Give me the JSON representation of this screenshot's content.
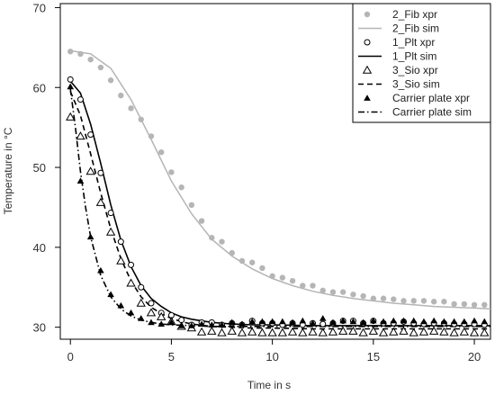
{
  "chart_data": {
    "type": "scatter",
    "title": "",
    "xlabel": "Time in s",
    "ylabel": "Temperature in °C",
    "xlim": [
      -0.5,
      20.8
    ],
    "ylim": [
      28.5,
      70.5
    ],
    "xticks": [
      0,
      5,
      10,
      15,
      20
    ],
    "yticks": [
      30,
      40,
      50,
      60,
      70
    ],
    "grid": false,
    "legend_position": "top-right",
    "colors": {
      "fib": "#b5b5b5",
      "dark": "#000000"
    },
    "legend": [
      {
        "label": "2_Fib xpr",
        "marker": "dot",
        "line": null,
        "color": "#b5b5b5"
      },
      {
        "label": "2_Fib sim",
        "marker": null,
        "line": "solid",
        "color": "#b5b5b5"
      },
      {
        "label": "1_Plt xpr",
        "marker": "open-circle",
        "line": null,
        "color": "#000000"
      },
      {
        "label": "1_Plt sim",
        "marker": null,
        "line": "solid",
        "color": "#000000"
      },
      {
        "label": "3_Sio xpr",
        "marker": "open-triangle",
        "line": null,
        "color": "#000000"
      },
      {
        "label": "3_Sio sim",
        "marker": null,
        "line": "dashed",
        "color": "#000000"
      },
      {
        "label": "Carrier plate xpr",
        "marker": "filled-triangle",
        "line": null,
        "color": "#000000"
      },
      {
        "label": "Carrier plate sim",
        "marker": null,
        "line": "dashdot",
        "color": "#000000"
      }
    ],
    "series": [
      {
        "name": "2_Fib xpr",
        "kind": "points",
        "marker": "dot",
        "color": "#b5b5b5",
        "x": [
          0,
          0.5,
          1.0,
          1.5,
          2.0,
          2.5,
          3.0,
          3.5,
          4.0,
          4.5,
          5.0,
          5.5,
          6.0,
          6.5,
          7.0,
          7.5,
          8.0,
          8.5,
          9.0,
          9.5,
          10.0,
          10.5,
          11.0,
          11.5,
          12.0,
          12.5,
          13.0,
          13.5,
          14.0,
          14.5,
          15.0,
          15.5,
          16.0,
          16.5,
          17.0,
          17.5,
          18.0,
          18.5,
          19.0,
          19.5,
          20.0,
          20.5
        ],
        "y": [
          64.5,
          64.2,
          63.5,
          62.5,
          60.9,
          59.0,
          57.4,
          56.0,
          53.9,
          51.9,
          49.4,
          47.5,
          45.3,
          43.3,
          41.2,
          40.7,
          39.3,
          38.3,
          38.1,
          37.4,
          36.4,
          36.2,
          35.8,
          35.2,
          35.2,
          34.6,
          34.4,
          34.4,
          34.1,
          33.9,
          33.6,
          33.6,
          33.5,
          33.3,
          33.3,
          33.3,
          33.2,
          33.2,
          32.9,
          32.9,
          32.8,
          32.8
        ]
      },
      {
        "name": "2_Fib sim",
        "kind": "line",
        "dash": "solid",
        "color": "#b5b5b5",
        "x": [
          0,
          1,
          2,
          3,
          4,
          5,
          6,
          7,
          8,
          9,
          10,
          11,
          12,
          13,
          14,
          15,
          16,
          17,
          18,
          19,
          20,
          20.8
        ],
        "y": [
          64.6,
          64.2,
          62.4,
          58.5,
          53.5,
          48.3,
          44.2,
          41.0,
          38.9,
          37.3,
          36.1,
          35.2,
          34.5,
          34.0,
          33.6,
          33.3,
          33.0,
          32.8,
          32.6,
          32.5,
          32.4,
          32.3
        ]
      },
      {
        "name": "1_Plt xpr",
        "kind": "points",
        "marker": "open-circle",
        "color": "#000000",
        "x": [
          0,
          0.5,
          1.0,
          1.5,
          2.0,
          2.5,
          3.0,
          3.5,
          4.0,
          4.5,
          5.0,
          5.5,
          6.0,
          6.5,
          7.0,
          7.5,
          8.0,
          8.5,
          9.0,
          9.5,
          10.0,
          10.5,
          11.0,
          11.5,
          12.0,
          12.5,
          13.0,
          13.5,
          14.0,
          14.5,
          15.0,
          15.5,
          16.0,
          16.5,
          17.0,
          17.5,
          18.0,
          18.5,
          19.0,
          19.5,
          20.0,
          20.5
        ],
        "y": [
          61.0,
          58.5,
          54.1,
          49.3,
          44.3,
          40.7,
          37.8,
          35.0,
          33.0,
          31.8,
          31.5,
          30.9,
          30.3,
          30.6,
          30.6,
          30.3,
          30.5,
          30.3,
          30.8,
          30.5,
          30.5,
          30.3,
          30.5,
          30.3,
          30.5,
          30.4,
          30.5,
          30.8,
          30.8,
          30.5,
          30.8,
          30.5,
          30.5,
          30.7,
          30.5,
          30.4,
          30.5,
          30.5,
          30.4,
          30.4,
          30.4,
          30.3
        ]
      },
      {
        "name": "1_Plt sim",
        "kind": "line",
        "dash": "solid",
        "color": "#000000",
        "x": [
          0,
          0.5,
          1.0,
          1.5,
          2.0,
          2.5,
          3.0,
          3.5,
          4.0,
          4.5,
          5.0,
          5.5,
          6.0,
          7.0,
          8.0,
          9.0,
          10.0,
          12.0,
          14.0,
          16.0,
          18.0,
          20.0,
          20.8
        ],
        "y": [
          60.8,
          59.3,
          55.4,
          50.5,
          45.3,
          40.9,
          37.6,
          35.2,
          33.6,
          32.6,
          31.8,
          31.3,
          31.0,
          30.6,
          30.4,
          30.3,
          30.3,
          30.2,
          30.2,
          30.2,
          30.2,
          30.2,
          30.2
        ]
      },
      {
        "name": "3_Sio xpr",
        "kind": "points",
        "marker": "open-triangle",
        "color": "#000000",
        "x": [
          0,
          0.5,
          1.0,
          1.5,
          2.0,
          2.5,
          3.0,
          3.5,
          4.0,
          4.5,
          5.0,
          5.5,
          6.0,
          6.5,
          7.0,
          7.5,
          8.0,
          8.5,
          9.0,
          9.5,
          10.0,
          10.5,
          11.0,
          11.5,
          12.0,
          12.5,
          13.0,
          13.5,
          14.0,
          14.5,
          15.0,
          15.5,
          16.0,
          16.5,
          17.0,
          17.5,
          18.0,
          18.5,
          19.0,
          19.5,
          20.0,
          20.5
        ],
        "y": [
          56.3,
          53.9,
          49.5,
          45.6,
          41.9,
          38.3,
          35.5,
          33.0,
          31.8,
          31.3,
          30.7,
          30.1,
          29.9,
          29.4,
          29.5,
          29.3,
          29.5,
          29.3,
          29.4,
          29.3,
          29.3,
          29.3,
          29.4,
          29.3,
          29.4,
          29.3,
          29.4,
          29.5,
          29.5,
          29.3,
          29.5,
          29.3,
          29.4,
          29.5,
          29.3,
          29.4,
          29.5,
          29.4,
          29.3,
          29.4,
          29.3,
          29.3
        ]
      },
      {
        "name": "3_Sio sim",
        "kind": "line",
        "dash": "dashed",
        "color": "#000000",
        "x": [
          0,
          0.5,
          1.0,
          1.5,
          2.0,
          2.5,
          3.0,
          3.5,
          4.0,
          4.5,
          5.0,
          5.5,
          6.0,
          7.0,
          8.0,
          9.0,
          10.0,
          12.0,
          14.0,
          16.0,
          18.0,
          20.0,
          20.8
        ],
        "y": [
          59.5,
          56.5,
          51.7,
          46.8,
          42.3,
          38.6,
          35.8,
          33.8,
          32.5,
          31.7,
          31.1,
          30.7,
          30.4,
          30.1,
          30.0,
          29.9,
          29.9,
          29.8,
          29.8,
          29.8,
          29.8,
          29.8,
          29.8
        ]
      },
      {
        "name": "Carrier plate xpr",
        "kind": "points",
        "marker": "filled-triangle",
        "color": "#000000",
        "x": [
          0,
          0.5,
          1.0,
          1.5,
          2.0,
          2.5,
          3.0,
          3.5,
          4.0,
          4.5,
          5.0,
          5.5,
          6.0,
          6.5,
          7.0,
          7.5,
          8.0,
          8.5,
          9.0,
          9.5,
          10.0,
          10.5,
          11.0,
          11.5,
          12.0,
          12.5,
          13.0,
          13.5,
          14.0,
          14.5,
          15.0,
          15.5,
          16.0,
          16.5,
          17.0,
          17.5,
          18.0,
          18.5,
          19.0,
          19.5,
          20.0,
          20.5
        ],
        "y": [
          60.1,
          48.3,
          41.3,
          37.1,
          34.1,
          32.7,
          31.8,
          31.1,
          30.6,
          30.4,
          30.6,
          30.2,
          30.2,
          30.4,
          30.3,
          30.3,
          30.6,
          30.4,
          30.7,
          30.7,
          30.7,
          30.7,
          30.6,
          30.8,
          30.5,
          31.1,
          30.6,
          30.8,
          30.7,
          30.6,
          30.8,
          30.7,
          30.8,
          30.8,
          30.8,
          30.7,
          30.8,
          30.7,
          30.7,
          30.7,
          30.8,
          30.7
        ]
      },
      {
        "name": "Carrier plate sim",
        "kind": "line",
        "dash": "dashdot",
        "color": "#000000",
        "x": [
          0,
          0.25,
          0.5,
          0.75,
          1.0,
          1.5,
          2.0,
          2.5,
          3.0,
          3.5,
          4.0,
          4.5,
          5.0,
          6.0,
          7.0,
          8.0,
          10.0,
          12.0,
          14.0,
          16.0,
          18.0,
          20.0,
          20.8
        ],
        "y": [
          59.8,
          55.0,
          49.5,
          45.0,
          41.3,
          36.5,
          33.8,
          32.3,
          31.4,
          30.9,
          30.6,
          30.4,
          30.3,
          30.2,
          30.1,
          30.1,
          30.1,
          30.1,
          30.1,
          30.1,
          30.1,
          30.1,
          30.1
        ]
      }
    ]
  }
}
